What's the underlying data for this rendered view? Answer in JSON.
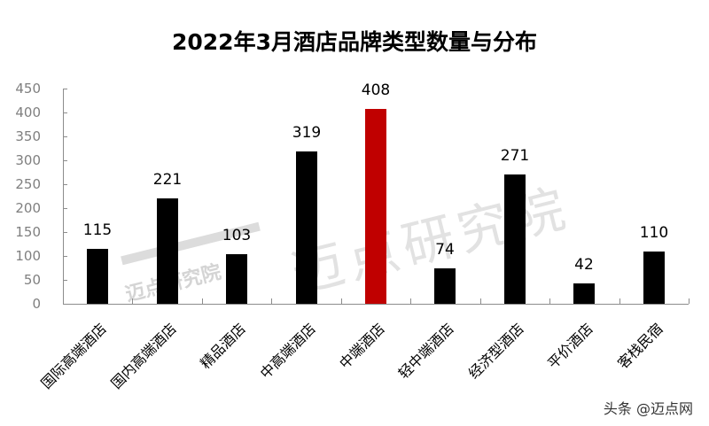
{
  "chart_data": {
    "type": "bar",
    "title": "2022年3月酒店品牌类型数量与分布",
    "xlabel": "",
    "ylabel": "",
    "ylim": [
      0,
      450
    ],
    "yticks": [
      0,
      50,
      100,
      150,
      200,
      250,
      300,
      350,
      400,
      450
    ],
    "grid": false,
    "legend": null,
    "categories": [
      "国际高端酒店",
      "国内高端酒店",
      "精品酒店",
      "中高端酒店",
      "中端酒店",
      "轻中端酒店",
      "经济型酒店",
      "平价酒店",
      "客栈民宿"
    ],
    "values": [
      115,
      221,
      103,
      319,
      408,
      74,
      271,
      42,
      110
    ],
    "bar_colors": [
      "#000000",
      "#000000",
      "#000000",
      "#000000",
      "#c00000",
      "#000000",
      "#000000",
      "#000000",
      "#000000"
    ],
    "highlight_category": "中端酒店",
    "data_labels": [
      "115",
      "221",
      "103",
      "319",
      "408",
      "74",
      "271",
      "42",
      "110"
    ]
  },
  "ytick_labels": [
    "0",
    "50",
    "100",
    "150",
    "200",
    "250",
    "300",
    "350",
    "400",
    "450"
  ],
  "watermark": {
    "big": "迈点研究院",
    "small": "迈点研究院"
  },
  "credit": "头条 @迈点网",
  "colors": {
    "bar": "#000000",
    "highlight": "#c00000",
    "axis": "#8c8c8c",
    "tick_label": "#7f7f7f"
  }
}
